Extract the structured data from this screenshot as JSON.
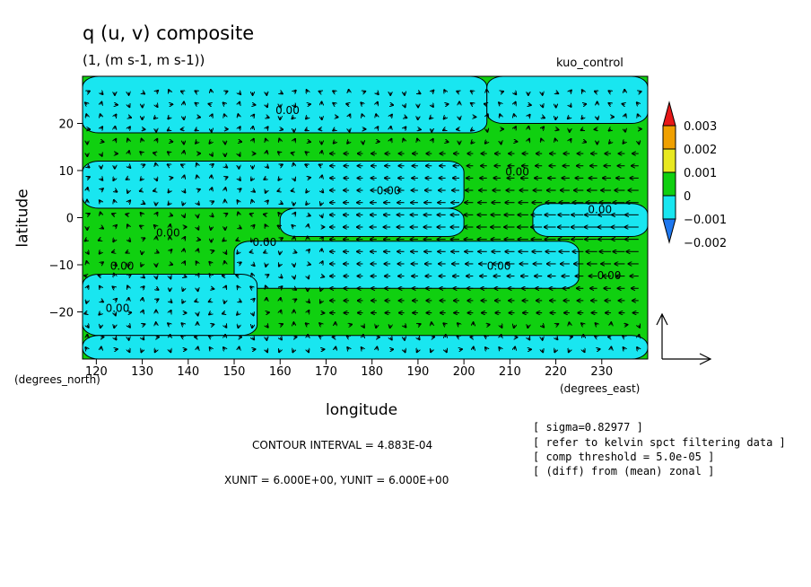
{
  "chart_data": {
    "type": "heatmap",
    "title": "q (u, v) composite",
    "subtitle": "(1, (m s-1, m s-1))",
    "run_label": "kuo_control",
    "xlabel": "longitude",
    "ylabel": "latitude",
    "x_unit_label": "(degrees_east)",
    "y_unit_label": "(degrees_north)",
    "xlim": [
      117,
      240
    ],
    "ylim": [
      -30,
      30
    ],
    "x_ticks": [
      {
        "value": 120,
        "label": "120"
      },
      {
        "value": 130,
        "label": "130"
      },
      {
        "value": 140,
        "label": "140"
      },
      {
        "value": 150,
        "label": "150"
      },
      {
        "value": 160,
        "label": "160"
      },
      {
        "value": 170,
        "label": "170"
      },
      {
        "value": 180,
        "label": "180"
      },
      {
        "value": 190,
        "label": "190"
      },
      {
        "value": 200,
        "label": "200"
      },
      {
        "value": 210,
        "label": "210"
      },
      {
        "value": 220,
        "label": "220"
      },
      {
        "value": 230,
        "label": "230"
      }
    ],
    "y_ticks": [
      {
        "value": 20,
        "label": "20"
      },
      {
        "value": 10,
        "label": "10"
      },
      {
        "value": 0,
        "label": "0"
      },
      {
        "value": -10,
        "label": "−10"
      },
      {
        "value": -20,
        "label": "−20"
      }
    ],
    "colorbar": {
      "bins": [
        {
          "color": "#1e78f0",
          "label": "-0.002"
        },
        {
          "color": "#19e6f0",
          "label": "-0.001"
        },
        {
          "color": "#10d010",
          "label": "0"
        },
        {
          "color": "#e8e820",
          "label": "0.001"
        },
        {
          "color": "#f0a000",
          "label": "0.002"
        },
        {
          "color": "#e81818",
          "label": "0.003"
        }
      ],
      "tick_labels": [
        "0.003",
        "0.002",
        "0.001",
        "0",
        "−0.001",
        "−0.002"
      ]
    },
    "background_color": "#10d010",
    "regions_negative_color": "#19e6f0",
    "regions_negative": [
      {
        "name": "north-west-band",
        "lon": [
          117,
          205
        ],
        "lat": [
          18,
          30
        ]
      },
      {
        "name": "north-east-band",
        "lon": [
          205,
          240
        ],
        "lat": [
          20,
          30
        ]
      },
      {
        "name": "northern-center",
        "lon": [
          117,
          200
        ],
        "lat": [
          2,
          12
        ]
      },
      {
        "name": "equatorial-strip",
        "lon": [
          160,
          200
        ],
        "lat": [
          -4,
          2
        ]
      },
      {
        "name": "east-equatorial",
        "lon": [
          215,
          240
        ],
        "lat": [
          -4,
          3
        ]
      },
      {
        "name": "south-center",
        "lon": [
          150,
          225
        ],
        "lat": [
          -15,
          -5
        ]
      },
      {
        "name": "south-west",
        "lon": [
          117,
          155
        ],
        "lat": [
          -25,
          -12
        ]
      },
      {
        "name": "southern-band",
        "lon": [
          117,
          240
        ],
        "lat": [
          -30,
          -25
        ]
      }
    ],
    "contour_labels": [
      {
        "text": "0.00",
        "lon": 159,
        "lat": 22
      },
      {
        "text": "0.00",
        "lon": 209,
        "lat": 9
      },
      {
        "text": "0.00",
        "lon": 181,
        "lat": 5
      },
      {
        "text": "0.00",
        "lon": 227,
        "lat": 1
      },
      {
        "text": "0.00",
        "lon": 133,
        "lat": -4
      },
      {
        "text": "0.00",
        "lon": 154,
        "lat": -6
      },
      {
        "text": "0.00",
        "lon": 123,
        "lat": -11
      },
      {
        "text": "0.00",
        "lon": 205,
        "lat": -11
      },
      {
        "text": "0.00",
        "lon": 229,
        "lat": -13
      },
      {
        "text": "0.00",
        "lon": 122,
        "lat": -20
      }
    ],
    "vector_reference": {
      "u": 6.0,
      "v": 6.0
    }
  },
  "footer": {
    "contour_interval": "CONTOUR INTERVAL = 4.883E-04",
    "units": "XUNIT = 6.000E+00, YUNIT = 6.000E+00",
    "notes": [
      "[ sigma=0.82977 ]",
      "[ refer to kelvin spct filtering data ]",
      "[ comp threshold = 5.0e-05 ]",
      "[ (diff) from (mean) zonal ]"
    ]
  }
}
